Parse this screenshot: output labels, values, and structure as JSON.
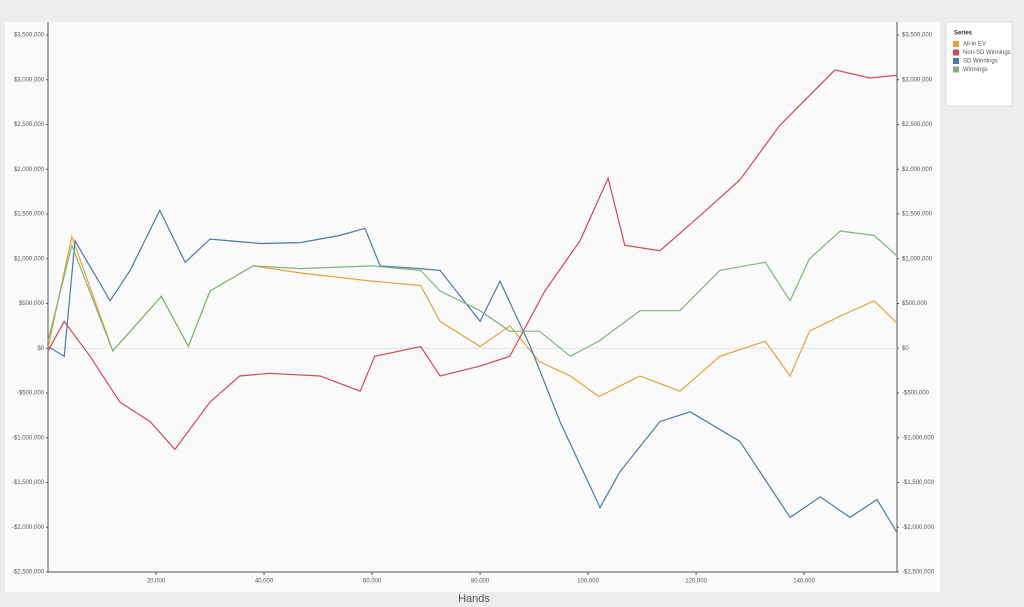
{
  "chart_data": {
    "type": "line",
    "xlabel": "Hands",
    "legend_title": "Series",
    "legend": "upper right",
    "xlim": [
      0,
      157200
    ],
    "xticks": [
      {
        "value": 20000,
        "label": "20,000"
      },
      {
        "value": 40000,
        "label": "40,000"
      },
      {
        "value": 60000,
        "label": "60,000"
      },
      {
        "value": 80000,
        "label": "80,000"
      },
      {
        "value": 100000,
        "label": "100,000"
      },
      {
        "value": 120000,
        "label": "120,000"
      },
      {
        "value": 140000,
        "label": "140,000"
      }
    ],
    "ylim": [
      -2500000,
      3500000
    ],
    "yticks": [
      {
        "value": -2500000,
        "label": "-$2,500,000"
      },
      {
        "value": -2000000,
        "label": "-$2,000,000"
      },
      {
        "value": -1500000,
        "label": "-$1,500,000"
      },
      {
        "value": -1000000,
        "label": "-$1,000,000"
      },
      {
        "value": -500000,
        "label": "-$500,000"
      },
      {
        "value": 0,
        "label": "$0"
      },
      {
        "value": 500000,
        "label": "$500,000"
      },
      {
        "value": 1000000,
        "label": "$1,000,000"
      },
      {
        "value": 1500000,
        "label": "$1,500,000"
      },
      {
        "value": 2000000,
        "label": "$2,000,000"
      },
      {
        "value": 2500000,
        "label": "$2,500,000"
      },
      {
        "value": 3000000,
        "label": "$3,000,000"
      },
      {
        "value": 3500000,
        "label": "$3,500,000"
      }
    ],
    "y2lim": [
      -2500000,
      3500000
    ],
    "y2ticks": [
      {
        "value": -2500000,
        "label": "-$2,500,000"
      },
      {
        "value": -2000000,
        "label": "-$2,000,000"
      },
      {
        "value": -1500000,
        "label": "-$1,500,000"
      },
      {
        "value": -1000000,
        "label": "-$1,000,000"
      },
      {
        "value": -500000,
        "label": "-$500,000"
      },
      {
        "value": 0,
        "label": "$0"
      },
      {
        "value": 500000,
        "label": "$500,000"
      },
      {
        "value": 1000000,
        "label": "$1,000,000"
      },
      {
        "value": 1500000,
        "label": "$1,500,000"
      },
      {
        "value": 2000000,
        "label": "$2,000,000"
      },
      {
        "value": 2500000,
        "label": "$2,500,000"
      },
      {
        "value": 3000000,
        "label": "$3,000,000"
      },
      {
        "value": 3500000,
        "label": "$3,500,000"
      }
    ],
    "series": [
      {
        "name": "All-in EV",
        "color": "#e3a33b",
        "x": [
          0,
          4400,
          12000,
          21000,
          26000,
          30000,
          38000,
          47000,
          60000,
          69000,
          72600,
          80000,
          85500,
          91000,
          96700,
          102000,
          109600,
          117000,
          124400,
          132800,
          137400,
          141000,
          146700,
          153000,
          157200
        ],
        "values": [
          0,
          1250000,
          -30000,
          580000,
          20000,
          640000,
          920000,
          840000,
          750000,
          700000,
          300000,
          20000,
          250000,
          -150000,
          -310000,
          -540000,
          -310000,
          -480000,
          -90000,
          80000,
          -310000,
          190000,
          360000,
          530000,
          280000
        ]
      },
      {
        "name": "Non-SD Winnings",
        "color": "#d0485a",
        "x": [
          0,
          3000,
          7800,
          13300,
          18900,
          23500,
          30000,
          35500,
          41000,
          50400,
          57800,
          60500,
          69000,
          72600,
          80000,
          85500,
          92000,
          98500,
          103700,
          106800,
          113300,
          120700,
          128100,
          135500,
          145700,
          152200,
          157200
        ],
        "values": [
          -30000,
          300000,
          -90000,
          -600000,
          -820000,
          -1130000,
          -600000,
          -310000,
          -280000,
          -310000,
          -480000,
          -90000,
          20000,
          -310000,
          -200000,
          -90000,
          640000,
          1200000,
          1900000,
          1150000,
          1090000,
          1480000,
          1880000,
          2490000,
          3110000,
          3020000,
          3050000
        ]
      },
      {
        "name": "SD Winnings",
        "color": "#4f78a3",
        "x": [
          0,
          3000,
          5000,
          11500,
          15200,
          20700,
          25400,
          30000,
          39300,
          46700,
          54000,
          58700,
          61500,
          68900,
          72600,
          80000,
          83700,
          89300,
          94800,
          102200,
          105900,
          113300,
          118900,
          128100,
          137400,
          143000,
          148500,
          153500,
          157200
        ],
        "values": [
          20000,
          -90000,
          1200000,
          530000,
          870000,
          1540000,
          960000,
          1220000,
          1170000,
          1180000,
          1260000,
          1340000,
          920000,
          890000,
          870000,
          300000,
          750000,
          20000,
          -820000,
          -1780000,
          -1380000,
          -820000,
          -710000,
          -1040000,
          -1890000,
          -1660000,
          -1890000,
          -1690000,
          -2060000
        ]
      },
      {
        "name": "Winnings",
        "color": "#7db57c",
        "x": [
          0,
          4400,
          12000,
          21000,
          26000,
          30000,
          38000,
          46700,
          60000,
          69000,
          72600,
          80000,
          85500,
          91000,
          96700,
          102000,
          109600,
          117000,
          124400,
          132800,
          137400,
          141000,
          146700,
          153000,
          157200
        ],
        "values": [
          80000,
          1150000,
          -30000,
          580000,
          20000,
          640000,
          920000,
          890000,
          920000,
          870000,
          640000,
          420000,
          190000,
          190000,
          -90000,
          80000,
          420000,
          420000,
          870000,
          960000,
          530000,
          1000000,
          1310000,
          1260000,
          1030000
        ]
      }
    ]
  }
}
